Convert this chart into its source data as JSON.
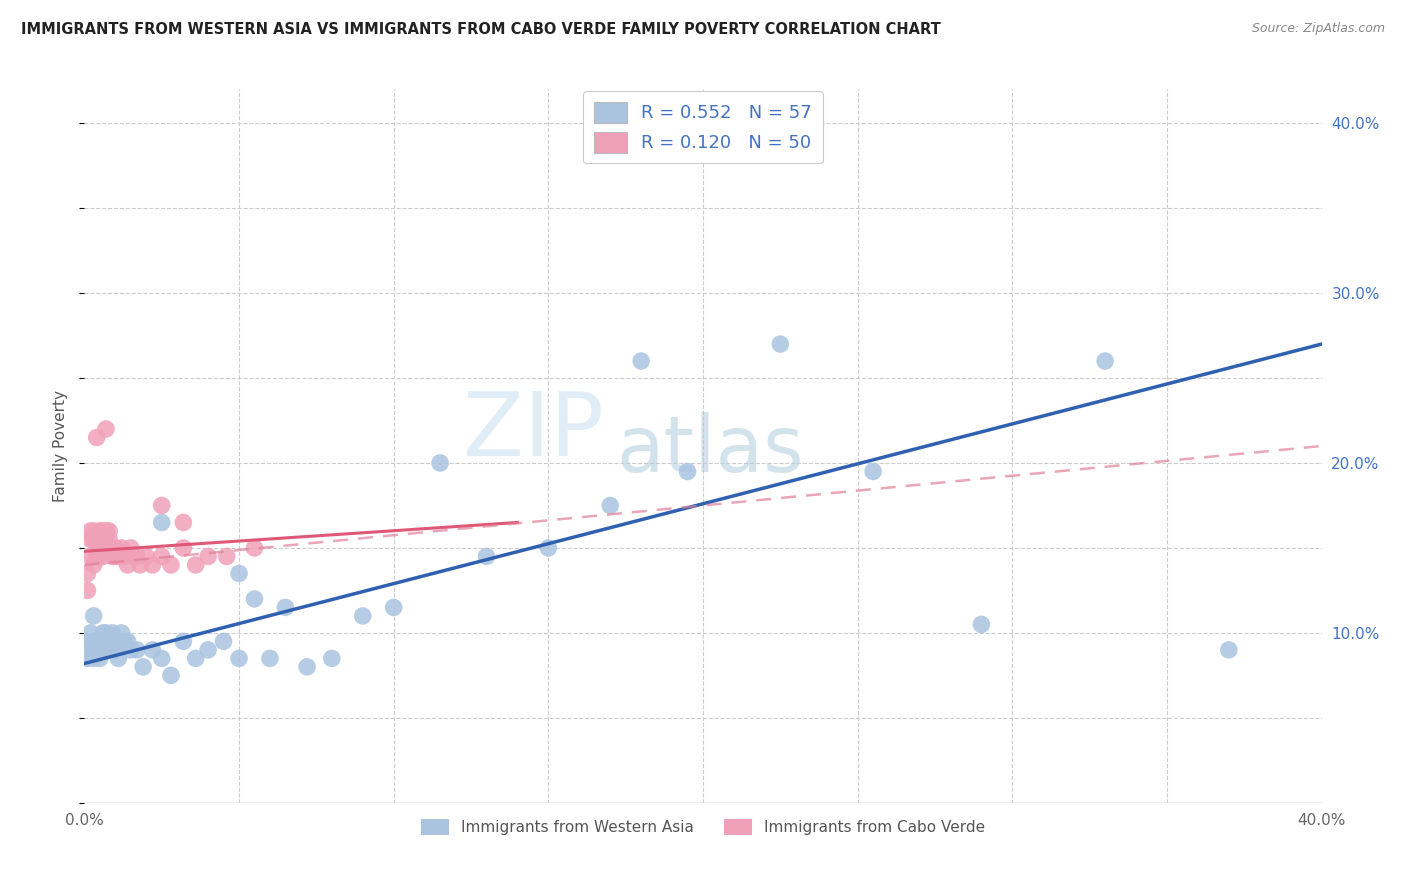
{
  "title": "IMMIGRANTS FROM WESTERN ASIA VS IMMIGRANTS FROM CABO VERDE FAMILY POVERTY CORRELATION CHART",
  "source": "Source: ZipAtlas.com",
  "ylabel": "Family Poverty",
  "xlim": [
    0.0,
    0.4
  ],
  "ylim": [
    0.0,
    0.42
  ],
  "x_ticks": [
    0.0,
    0.05,
    0.1,
    0.15,
    0.2,
    0.25,
    0.3,
    0.35,
    0.4
  ],
  "y_ticks": [
    0.0,
    0.05,
    0.1,
    0.15,
    0.2,
    0.25,
    0.3,
    0.35,
    0.4
  ],
  "legend_label1": "R = 0.552   N = 57",
  "legend_label2": "R = 0.120   N = 50",
  "color_blue": "#aac4e0",
  "color_pink": "#f0a0b8",
  "line_color_blue": "#3060b0",
  "line_color_pink": "#e05878",
  "line_color_pink_dashed": "#e08098",
  "watermark_zip": "ZIP",
  "watermark_atlas": "atlas",
  "legend_bottom_label1": "Immigrants from Western Asia",
  "legend_bottom_label2": "Immigrants from Cabo Verde",
  "blue_x": [
    0.001,
    0.001,
    0.002,
    0.002,
    0.003,
    0.003,
    0.003,
    0.004,
    0.004,
    0.005,
    0.005,
    0.005,
    0.006,
    0.006,
    0.007,
    0.007,
    0.007,
    0.008,
    0.008,
    0.009,
    0.01,
    0.01,
    0.011,
    0.012,
    0.013,
    0.014,
    0.015,
    0.017,
    0.019,
    0.022,
    0.025,
    0.028,
    0.032,
    0.036,
    0.04,
    0.045,
    0.05,
    0.055,
    0.06,
    0.065,
    0.072,
    0.08,
    0.09,
    0.1,
    0.115,
    0.13,
    0.15,
    0.17,
    0.195,
    0.225,
    0.255,
    0.29,
    0.33,
    0.37,
    0.18,
    0.05,
    0.025
  ],
  "blue_y": [
    0.085,
    0.095,
    0.09,
    0.1,
    0.11,
    0.095,
    0.085,
    0.095,
    0.09,
    0.095,
    0.09,
    0.085,
    0.09,
    0.1,
    0.09,
    0.095,
    0.1,
    0.09,
    0.095,
    0.1,
    0.09,
    0.095,
    0.085,
    0.1,
    0.095,
    0.095,
    0.09,
    0.09,
    0.08,
    0.09,
    0.085,
    0.075,
    0.095,
    0.085,
    0.09,
    0.095,
    0.085,
    0.12,
    0.085,
    0.115,
    0.08,
    0.085,
    0.11,
    0.115,
    0.2,
    0.145,
    0.15,
    0.175,
    0.195,
    0.27,
    0.195,
    0.105,
    0.26,
    0.09,
    0.26,
    0.135,
    0.165
  ],
  "pink_x": [
    0.001,
    0.001,
    0.002,
    0.002,
    0.002,
    0.003,
    0.003,
    0.003,
    0.004,
    0.004,
    0.004,
    0.005,
    0.005,
    0.005,
    0.005,
    0.006,
    0.006,
    0.006,
    0.006,
    0.007,
    0.007,
    0.007,
    0.008,
    0.008,
    0.008,
    0.009,
    0.009,
    0.01,
    0.01,
    0.011,
    0.012,
    0.013,
    0.014,
    0.015,
    0.016,
    0.017,
    0.018,
    0.02,
    0.022,
    0.025,
    0.028,
    0.032,
    0.036,
    0.04,
    0.046,
    0.055,
    0.007,
    0.004,
    0.025,
    0.032
  ],
  "pink_y": [
    0.135,
    0.125,
    0.16,
    0.145,
    0.155,
    0.14,
    0.155,
    0.16,
    0.145,
    0.155,
    0.155,
    0.145,
    0.15,
    0.155,
    0.16,
    0.145,
    0.155,
    0.16,
    0.15,
    0.155,
    0.16,
    0.15,
    0.155,
    0.15,
    0.16,
    0.145,
    0.15,
    0.15,
    0.145,
    0.145,
    0.15,
    0.145,
    0.14,
    0.15,
    0.145,
    0.145,
    0.14,
    0.145,
    0.14,
    0.145,
    0.14,
    0.15,
    0.14,
    0.145,
    0.145,
    0.15,
    0.22,
    0.215,
    0.175,
    0.165
  ],
  "blue_trend_x": [
    0.0,
    0.4
  ],
  "blue_trend_y": [
    0.082,
    0.27
  ],
  "pink_solid_trend_x": [
    0.0,
    0.14
  ],
  "pink_solid_trend_y": [
    0.148,
    0.165
  ],
  "pink_dashed_trend_x": [
    0.0,
    0.4
  ],
  "pink_dashed_trend_y": [
    0.14,
    0.21
  ]
}
